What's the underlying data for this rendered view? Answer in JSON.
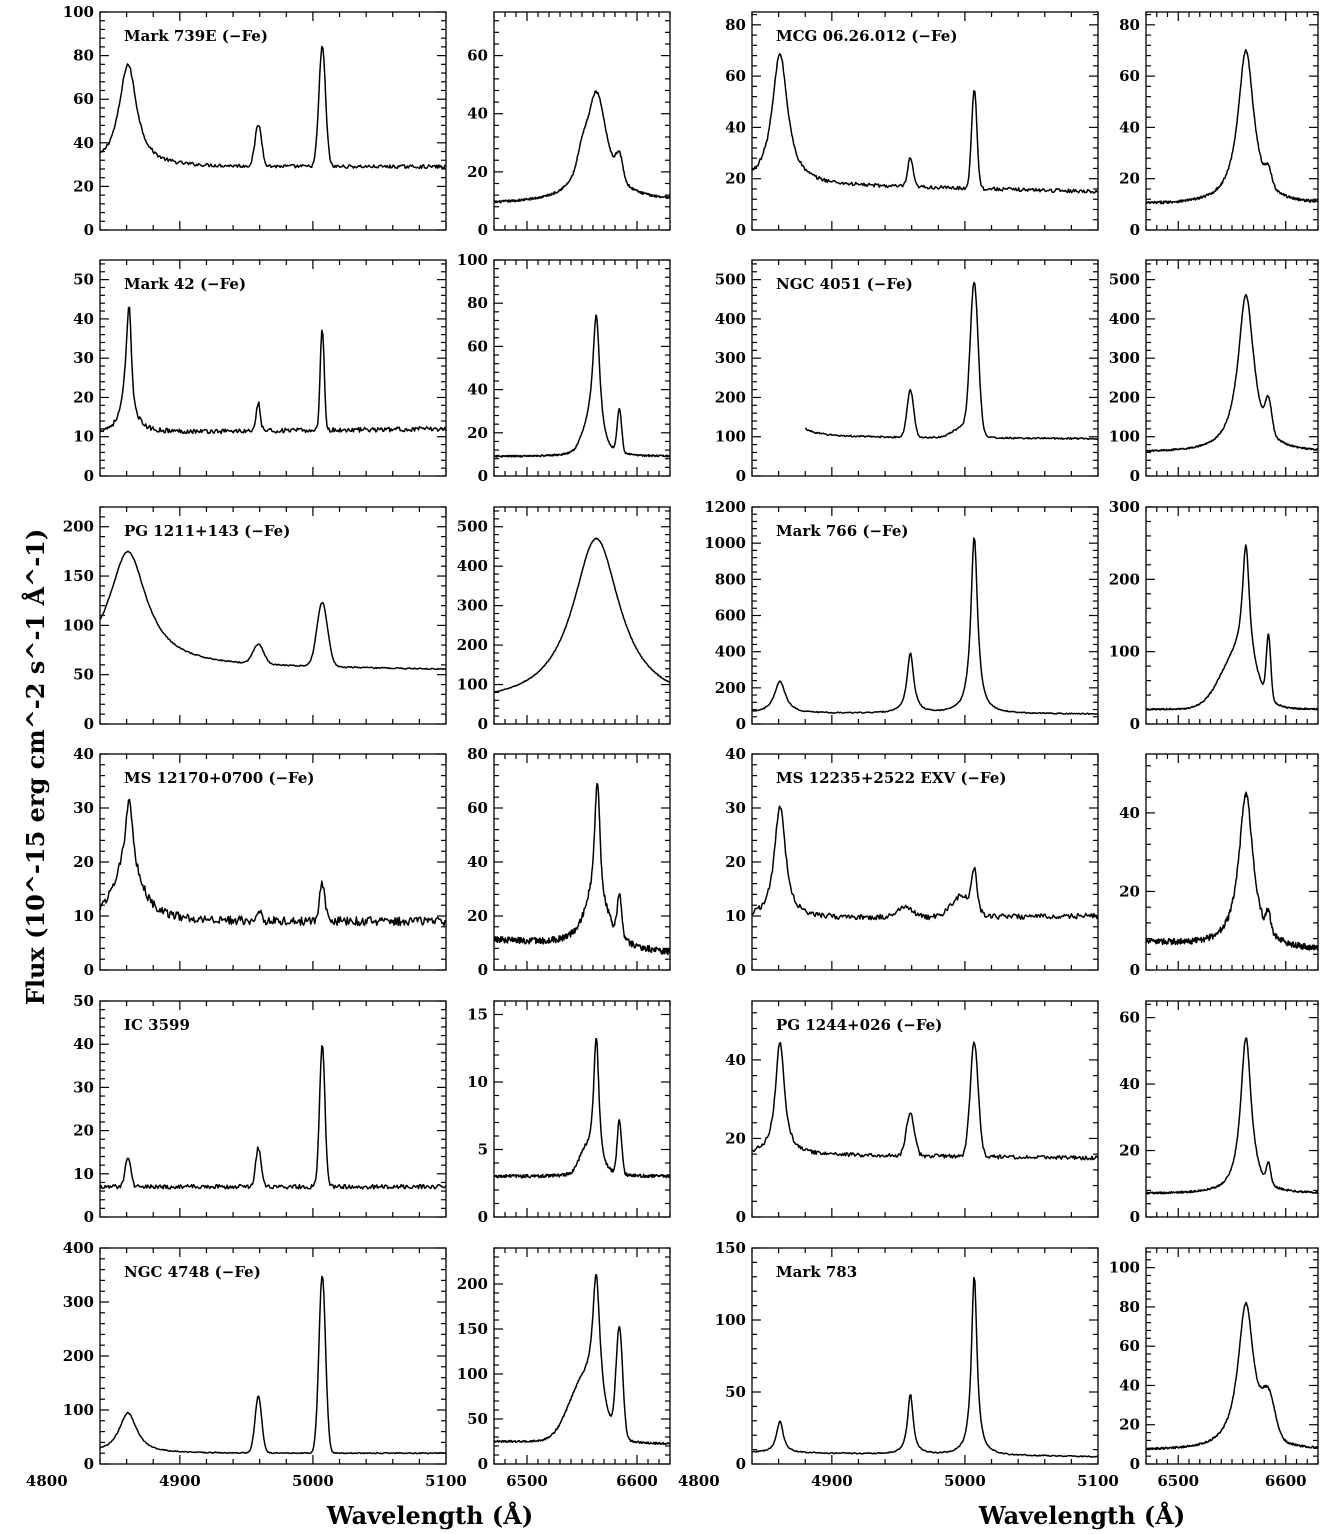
{
  "figure": {
    "y_axis_title": "Flux (10^-15 erg cm^-2 s^-1 Å^-1)",
    "x_axis_title_left": "Wavelength (Å)",
    "x_axis_title_right": "Wavelength (Å)"
  },
  "chart_data": [
    {
      "type": "line",
      "panel": "left-blue",
      "title": "Mark 739E (−Fe)",
      "name": "Mark 739E (−Fe)",
      "ylim": [
        0,
        100
      ],
      "yticks": [
        0,
        20,
        40,
        60,
        80,
        100
      ],
      "xlim": [
        4840,
        5100
      ],
      "xticks": [
        4800,
        4900,
        5000,
        5100
      ],
      "continuum": [
        29,
        29
      ],
      "lines": [
        {
          "c": 4861,
          "a": 47,
          "w": 8,
          "p": "l"
        },
        {
          "c": 4959,
          "a": 19,
          "w": 2.5,
          "p": "g"
        },
        {
          "c": 5007,
          "a": 55,
          "w": 2.5,
          "p": "g"
        }
      ],
      "noise": 0.8
    },
    {
      "type": "line",
      "panel": "right-red",
      "ylim": [
        0,
        75
      ],
      "yticks": [
        0,
        20,
        40,
        60
      ],
      "xlim": [
        6470,
        6630
      ],
      "xticks": [
        6500,
        6600
      ],
      "continuum": [
        9,
        10
      ],
      "lines": [
        {
          "c": 6563,
          "a": 38,
          "w": 12,
          "p": "l"
        },
        {
          "c": 6550,
          "a": 5,
          "w": 4,
          "p": "g"
        },
        {
          "c": 6584,
          "a": 8,
          "w": 3,
          "p": "g"
        }
      ],
      "noise": 0.4
    },
    {
      "type": "line",
      "panel": "left-blue",
      "title": "MCG 06.26.012 (−Fe)",
      "name": "MCG 06.26.012 (−Fe)",
      "ylim": [
        0,
        85
      ],
      "yticks": [
        0,
        20,
        40,
        60,
        80
      ],
      "xlim": [
        4840,
        5100
      ],
      "xticks": [
        4800,
        4900,
        5000,
        5100
      ],
      "continuum": [
        18,
        15
      ],
      "lines": [
        {
          "c": 4861,
          "a": 51,
          "w": 7,
          "p": "l"
        },
        {
          "c": 4959,
          "a": 11,
          "w": 2,
          "p": "g"
        },
        {
          "c": 5007,
          "a": 39,
          "w": 2,
          "p": "g"
        }
      ],
      "noise": 0.7
    },
    {
      "type": "line",
      "panel": "right-red",
      "ylim": [
        0,
        85
      ],
      "yticks": [
        0,
        20,
        40,
        60,
        80
      ],
      "xlim": [
        6470,
        6630
      ],
      "xticks": [
        6500,
        6600
      ],
      "continuum": [
        10,
        10
      ],
      "lines": [
        {
          "c": 6563,
          "a": 60,
          "w": 9,
          "p": "l"
        },
        {
          "c": 6584,
          "a": 6,
          "w": 3,
          "p": "g"
        }
      ],
      "noise": 0.5
    },
    {
      "type": "line",
      "panel": "left-blue",
      "title": "Mark 42 (−Fe)",
      "name": "Mark 42 (−Fe)",
      "ylim": [
        0,
        55
      ],
      "yticks": [
        0,
        10,
        20,
        30,
        40,
        50
      ],
      "xlim": [
        4840,
        5100
      ],
      "xticks": [
        4800,
        4900,
        5000,
        5100
      ],
      "continuum": [
        11,
        12
      ],
      "lines": [
        {
          "c": 4861,
          "a": 20,
          "w": 4,
          "p": "l"
        },
        {
          "c": 4862,
          "a": 13,
          "w": 1.4,
          "p": "g"
        },
        {
          "c": 4959,
          "a": 7,
          "w": 1.5,
          "p": "g"
        },
        {
          "c": 5007,
          "a": 26,
          "w": 1.5,
          "p": "g"
        }
      ],
      "noise": 0.6
    },
    {
      "type": "line",
      "panel": "right-red",
      "ylim": [
        0,
        100
      ],
      "yticks": [
        0,
        20,
        40,
        60,
        80,
        100
      ],
      "xlim": [
        6470,
        6630
      ],
      "xticks": [
        6500,
        6600
      ],
      "continuum": [
        9,
        9
      ],
      "lines": [
        {
          "c": 6563,
          "a": 62,
          "w": 4,
          "p": "l"
        },
        {
          "c": 6555,
          "a": 8,
          "w": 6,
          "p": "g"
        },
        {
          "c": 6584,
          "a": 20,
          "w": 2,
          "p": "g"
        }
      ],
      "noise": 0.4
    },
    {
      "type": "line",
      "panel": "left-blue",
      "title": "NGC 4051 (−Fe)",
      "name": "NGC 4051 (−Fe)",
      "xstart": 4880,
      "ylim": [
        0,
        550
      ],
      "yticks": [
        0,
        100,
        200,
        300,
        400,
        500
      ],
      "xlim": [
        4840,
        5100
      ],
      "xticks": [
        4800,
        4900,
        5000,
        5100
      ],
      "continuum": [
        100,
        95
      ],
      "lines": [
        {
          "c": 4861,
          "a": 180,
          "w": 7,
          "p": "l"
        },
        {
          "c": 4959,
          "a": 120,
          "w": 2.5,
          "p": "g"
        },
        {
          "c": 5007,
          "a": 375,
          "w": 3,
          "p": "g"
        },
        {
          "c": 5000,
          "a": 30,
          "w": 8,
          "p": "g"
        }
      ],
      "noise": 2
    },
    {
      "type": "line",
      "panel": "right-red",
      "ylim": [
        0,
        550
      ],
      "yticks": [
        0,
        100,
        200,
        300,
        400,
        500
      ],
      "xlim": [
        6470,
        6630
      ],
      "xticks": [
        6500,
        6600
      ],
      "continuum": [
        60,
        60
      ],
      "lines": [
        {
          "c": 6563,
          "a": 400,
          "w": 9,
          "p": "l"
        },
        {
          "c": 6584,
          "a": 80,
          "w": 3,
          "p": "g"
        }
      ],
      "noise": 2
    },
    {
      "type": "line",
      "panel": "left-blue",
      "title": "PG 1211+143 (−Fe)",
      "name": "PG 1211+143 (−Fe)",
      "ylim": [
        0,
        220
      ],
      "yticks": [
        0,
        50,
        100,
        150,
        200
      ],
      "xlim": [
        4840,
        5100
      ],
      "xticks": [
        4800,
        4900,
        5000,
        5100
      ],
      "continuum": [
        60,
        55
      ],
      "lines": [
        {
          "c": 4861,
          "a": 115,
          "w": 17,
          "p": "l"
        },
        {
          "c": 4959,
          "a": 20,
          "w": 4,
          "p": "g"
        },
        {
          "c": 5007,
          "a": 65,
          "w": 4,
          "p": "g"
        }
      ],
      "noise": 0.6
    },
    {
      "type": "line",
      "panel": "right-red",
      "ylim": [
        0,
        550
      ],
      "yticks": [
        0,
        100,
        200,
        300,
        400,
        500
      ],
      "xlim": [
        6470,
        6630
      ],
      "xticks": [
        6500,
        6600
      ],
      "continuum": [
        50,
        50
      ],
      "lines": [
        {
          "c": 6563,
          "a": 420,
          "w": 26,
          "p": "l"
        }
      ],
      "noise": 1
    },
    {
      "type": "line",
      "panel": "left-blue",
      "title": "Mark 766 (−Fe)",
      "name": "Mark 766 (−Fe)",
      "ylim": [
        0,
        1200
      ],
      "yticks": [
        0,
        200,
        400,
        600,
        800,
        1000,
        1200
      ],
      "xlim": [
        4840,
        5100
      ],
      "xticks": [
        4800,
        4900,
        5000,
        5100
      ],
      "continuum": [
        60,
        55
      ],
      "lines": [
        {
          "c": 4861,
          "a": 175,
          "w": 5,
          "p": "l"
        },
        {
          "c": 4959,
          "a": 330,
          "w": 3,
          "p": "l"
        },
        {
          "c": 5007,
          "a": 980,
          "w": 3,
          "p": "l"
        }
      ],
      "noise": 3
    },
    {
      "type": "line",
      "panel": "right-red",
      "ylim": [
        0,
        300
      ],
      "yticks": [
        0,
        100,
        200,
        300
      ],
      "xlim": [
        6470,
        6630
      ],
      "xticks": [
        6500,
        6600
      ],
      "continuum": [
        20,
        20
      ],
      "lines": [
        {
          "c": 6563,
          "a": 165,
          "w": 4,
          "p": "l"
        },
        {
          "c": 6555,
          "a": 70,
          "w": 16,
          "p": "g"
        },
        {
          "c": 6584,
          "a": 85,
          "w": 2,
          "p": "g"
        }
      ],
      "noise": 1
    },
    {
      "type": "line",
      "panel": "left-blue",
      "title": "MS 12170+0700 (−Fe)",
      "name": "MS 12170+0700 (−Fe)",
      "ylim": [
        0,
        40
      ],
      "yticks": [
        0,
        10,
        20,
        30,
        40
      ],
      "xlim": [
        4840,
        5100
      ],
      "xticks": [
        4800,
        4900,
        5000,
        5100
      ],
      "continuum": [
        9,
        9
      ],
      "lines": [
        {
          "c": 4861,
          "a": 15,
          "w": 10,
          "p": "l"
        },
        {
          "c": 4862,
          "a": 7,
          "w": 2,
          "p": "g"
        },
        {
          "c": 4959,
          "a": 2,
          "w": 2,
          "p": "g"
        },
        {
          "c": 5007,
          "a": 7,
          "w": 2,
          "p": "g"
        }
      ],
      "noise": 0.8
    },
    {
      "type": "line",
      "panel": "right-red",
      "ylim": [
        0,
        80
      ],
      "yticks": [
        0,
        20,
        40,
        60,
        80
      ],
      "xlim": [
        6470,
        6630
      ],
      "xticks": [
        6500,
        6600
      ],
      "continuum": [
        11,
        6
      ],
      "lines": [
        {
          "c": 6563,
          "a": 30,
          "w": 10,
          "p": "l"
        },
        {
          "c": 6564,
          "a": 32,
          "w": 2,
          "p": "g"
        },
        {
          "c": 6584,
          "a": 15,
          "w": 2,
          "p": "g"
        }
      ],
      "noise": 1.2
    },
    {
      "type": "line",
      "panel": "left-blue",
      "title": "MS 12235+2522 EXV (−Fe)",
      "name": "MS 12235+2522 EXV (−Fe)",
      "ylim": [
        0,
        40
      ],
      "yticks": [
        0,
        10,
        20,
        30,
        40
      ],
      "xlim": [
        4840,
        5100
      ],
      "xticks": [
        4800,
        4900,
        5000,
        5100
      ],
      "continuum": [
        9.5,
        10
      ],
      "lines": [
        {
          "c": 4861,
          "a": 21,
          "w": 5,
          "p": "l"
        },
        {
          "c": 4955,
          "a": 2,
          "w": 6,
          "p": "g"
        },
        {
          "c": 4998,
          "a": 4,
          "w": 8,
          "p": "g"
        },
        {
          "c": 5007,
          "a": 7,
          "w": 2,
          "p": "g"
        }
      ],
      "noise": 0.5
    },
    {
      "type": "line",
      "panel": "right-red",
      "ylim": [
        0,
        55
      ],
      "yticks": [
        0,
        20,
        40
      ],
      "xlim": [
        6470,
        6630
      ],
      "xticks": [
        6500,
        6600
      ],
      "continuum": [
        7,
        5
      ],
      "lines": [
        {
          "c": 6563,
          "a": 39,
          "w": 8,
          "p": "l"
        },
        {
          "c": 6584,
          "a": 5,
          "w": 2,
          "p": "g"
        }
      ],
      "noise": 0.8
    },
    {
      "type": "line",
      "panel": "left-blue",
      "title": "IC 3599",
      "name": "IC 3599",
      "ylim": [
        0,
        50
      ],
      "yticks": [
        0,
        10,
        20,
        30,
        40,
        50
      ],
      "xlim": [
        4840,
        5100
      ],
      "xticks": [
        4800,
        4900,
        5000,
        5100
      ],
      "continuum": [
        7,
        7
      ],
      "lines": [
        {
          "c": 4861,
          "a": 7,
          "w": 2,
          "p": "g"
        },
        {
          "c": 4959,
          "a": 9,
          "w": 2,
          "p": "g"
        },
        {
          "c": 5007,
          "a": 33,
          "w": 2,
          "p": "g"
        }
      ],
      "noise": 0.5
    },
    {
      "type": "line",
      "panel": "right-red",
      "ylim": [
        0,
        16
      ],
      "yticks": [
        0,
        5,
        10,
        15
      ],
      "xlim": [
        6470,
        6630
      ],
      "xticks": [
        6500,
        6600
      ],
      "continuum": [
        3,
        3
      ],
      "lines": [
        {
          "c": 6563,
          "a": 10,
          "w": 3,
          "p": "l"
        },
        {
          "c": 6553,
          "a": 1.5,
          "w": 6,
          "p": "g"
        },
        {
          "c": 6584,
          "a": 4,
          "w": 2,
          "p": "g"
        }
      ],
      "noise": 0.12
    },
    {
      "type": "line",
      "panel": "left-blue",
      "title": "PG 1244+026 (−Fe)",
      "name": "PG 1244+026 (−Fe)",
      "ylim": [
        0,
        55
      ],
      "yticks": [
        0,
        20,
        40
      ],
      "xlim": [
        4840,
        5100
      ],
      "xticks": [
        4800,
        4900,
        5000,
        5100
      ],
      "continuum": [
        16,
        15
      ],
      "lines": [
        {
          "c": 4861,
          "a": 29,
          "w": 4,
          "p": "l"
        },
        {
          "c": 4959,
          "a": 11,
          "w": 3,
          "p": "g"
        },
        {
          "c": 5007,
          "a": 29,
          "w": 3,
          "p": "g"
        }
      ],
      "noise": 0.5
    },
    {
      "type": "line",
      "panel": "right-red",
      "ylim": [
        0,
        65
      ],
      "yticks": [
        0,
        20,
        40,
        60
      ],
      "xlim": [
        6470,
        6630
      ],
      "xticks": [
        6500,
        6600
      ],
      "continuum": [
        7,
        7
      ],
      "lines": [
        {
          "c": 6563,
          "a": 47,
          "w": 6,
          "p": "l"
        },
        {
          "c": 6584,
          "a": 6,
          "w": 2,
          "p": "g"
        }
      ],
      "noise": 0.3
    },
    {
      "type": "line",
      "panel": "left-blue",
      "title": "NGC 4748 (−Fe)",
      "name": "NGC 4748 (−Fe)",
      "ylim": [
        0,
        400
      ],
      "yticks": [
        0,
        100,
        200,
        300,
        400
      ],
      "xlim": [
        4840,
        5100
      ],
      "xticks": [
        4800,
        4900,
        5000,
        5100
      ],
      "continuum": [
        20,
        20
      ],
      "lines": [
        {
          "c": 4861,
          "a": 75,
          "w": 8,
          "p": "l"
        },
        {
          "c": 4959,
          "a": 105,
          "w": 2.5,
          "p": "g"
        },
        {
          "c": 5007,
          "a": 330,
          "w": 2.5,
          "p": "g"
        }
      ],
      "noise": 1
    },
    {
      "type": "line",
      "panel": "right-red",
      "ylim": [
        0,
        240
      ],
      "yticks": [
        0,
        50,
        100,
        150,
        200
      ],
      "xlim": [
        6470,
        6630
      ],
      "xticks": [
        6500,
        6600
      ],
      "continuum": [
        25,
        22
      ],
      "lines": [
        {
          "c": 6563,
          "a": 140,
          "w": 4,
          "p": "l"
        },
        {
          "c": 6552,
          "a": 65,
          "w": 14,
          "p": "g"
        },
        {
          "c": 6584,
          "a": 120,
          "w": 3,
          "p": "g"
        }
      ],
      "noise": 1
    },
    {
      "type": "line",
      "panel": "left-blue",
      "title": "Mark 783",
      "name": "Mark 783",
      "ylim": [
        0,
        150
      ],
      "yticks": [
        0,
        50,
        100,
        150
      ],
      "xlim": [
        4840,
        5100
      ],
      "xticks": [
        4800,
        4900,
        5000,
        5100
      ],
      "continuum": [
        8,
        5
      ],
      "lines": [
        {
          "c": 4861,
          "a": 22,
          "w": 3,
          "p": "l"
        },
        {
          "c": 4959,
          "a": 42,
          "w": 2.5,
          "p": "l"
        },
        {
          "c": 5007,
          "a": 125,
          "w": 2.5,
          "p": "l"
        }
      ],
      "noise": 0.4
    },
    {
      "type": "line",
      "panel": "right-red",
      "ylim": [
        0,
        110
      ],
      "yticks": [
        0,
        20,
        40,
        60,
        80,
        100
      ],
      "xlim": [
        6470,
        6630
      ],
      "xticks": [
        6500,
        6600
      ],
      "continuum": [
        7,
        7
      ],
      "lines": [
        {
          "c": 6563,
          "a": 75,
          "w": 9,
          "p": "l"
        },
        {
          "c": 6584,
          "a": 20,
          "w": 6,
          "p": "g"
        }
      ],
      "noise": 0.5
    }
  ]
}
